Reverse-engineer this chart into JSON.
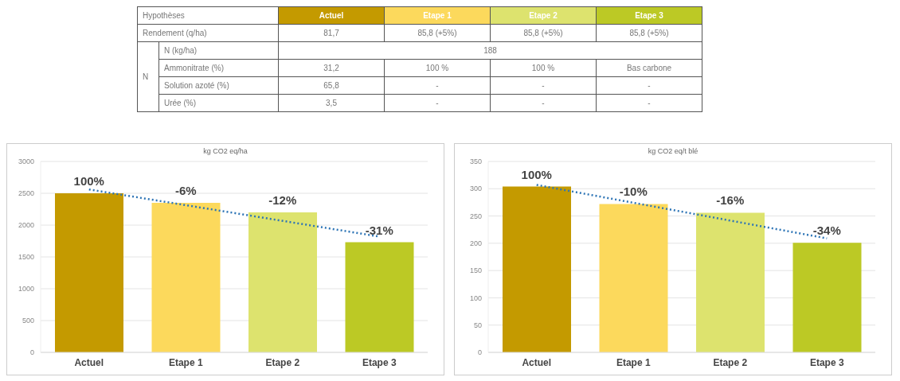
{
  "chart_data": [
    {
      "type": "other",
      "categories": [
        "Hypothèses",
        "Actuel",
        "Etape 1",
        "Etape 2",
        "Etape 3"
      ],
      "colors": [
        "#ffffff",
        "#c49a00",
        "#fcd95c",
        "#dde36e",
        "#bcc925"
      ],
      "cell_labels": [
        [
          "Rendement (q/ha)",
          null,
          "81,7",
          "85,8 (+5%)",
          "85,8 (+5%)",
          "85,8 (+5%)"
        ],
        [
          "N",
          "N (kg/ha)",
          "188",
          null,
          null,
          null
        ],
        [
          null,
          "Ammonitrate (%)",
          "31,2",
          "100 %",
          "100 %",
          "Bas carbone"
        ],
        [
          null,
          "Solution azoté (%)",
          "65,8",
          "-",
          "-",
          "-"
        ],
        [
          null,
          "Urée (%)",
          "3,5",
          "-",
          "-",
          "-"
        ]
      ]
    },
    {
      "type": "bar",
      "title": "kg CO2 eq/ha",
      "categories": [
        "Actuel",
        "Etape 1",
        "Etape 2",
        "Etape 3"
      ],
      "ylim": [
        0,
        3000
      ],
      "yticks": [
        0,
        500,
        1000,
        1500,
        2000,
        2500,
        3000
      ],
      "grid": "y",
      "legend": false,
      "annotations": [
        {
          "text": "100%",
          "x": "Actuel",
          "y": 2500
        },
        {
          "text": "-6%",
          "x": "Etape 1",
          "y": 2350
        },
        {
          "text": "-12%",
          "x": "Etape 2",
          "y": 2200
        },
        {
          "text": "-31%",
          "x": "Etape 3",
          "y": 1730
        }
      ],
      "series": [
        {
          "type": "bar",
          "colors": [
            "#c49a00",
            "#fcd95c",
            "#dde36e",
            "#bcc925"
          ],
          "values": [
            2500,
            2350,
            2200,
            1730
          ]
        },
        {
          "type": "line",
          "x": [
            "Actuel",
            "Etape 3"
          ],
          "values": [
            2560,
            1820
          ],
          "color": "#2e75b6",
          "line_style": "dotted",
          "marker": "none"
        }
      ]
    },
    {
      "type": "bar",
      "title": "kg CO2 eq/t blé",
      "categories": [
        "Actuel",
        "Etape 1",
        "Etape 2",
        "Etape 3"
      ],
      "ylim": [
        0,
        350
      ],
      "yticks": [
        0,
        50,
        100,
        150,
        200,
        250,
        300,
        350
      ],
      "grid": "y",
      "legend": false,
      "annotations": [
        {
          "text": "100%",
          "x": "Actuel",
          "y": 304
        },
        {
          "text": "-10%",
          "x": "Etape 1",
          "y": 272
        },
        {
          "text": "-16%",
          "x": "Etape 2",
          "y": 256
        },
        {
          "text": "-34%",
          "x": "Etape 3",
          "y": 201
        }
      ],
      "series": [
        {
          "type": "bar",
          "colors": [
            "#c49a00",
            "#fcd95c",
            "#dde36e",
            "#bcc925"
          ],
          "values": [
            304,
            272,
            256,
            201
          ]
        },
        {
          "type": "line",
          "x": [
            "Actuel",
            "Etape 3"
          ],
          "values": [
            307,
            209
          ],
          "color": "#2e75b6",
          "line_style": "dotted",
          "marker": "none"
        }
      ]
    }
  ]
}
